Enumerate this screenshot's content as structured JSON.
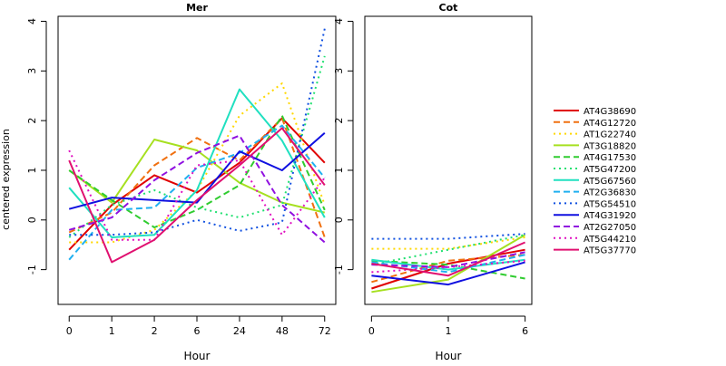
{
  "chart_data": {
    "type": "line",
    "ylabel": "centered expression",
    "xlabel": "Hour",
    "y_ticks": [
      -1,
      0,
      1,
      2,
      3,
      4
    ],
    "ylim": [
      -1.7,
      4.1
    ],
    "legend_position": "right",
    "series_styles": [
      {
        "name": "AT4G38690",
        "color": "#e00000",
        "dash": "solid"
      },
      {
        "name": "AT4G12720",
        "color": "#f07010",
        "dash": "dashed"
      },
      {
        "name": "AT1G22740",
        "color": "#ffd700",
        "dash": "dotted"
      },
      {
        "name": "AT3G18820",
        "color": "#a6e020",
        "dash": "solid"
      },
      {
        "name": "AT4G17530",
        "color": "#30cc30",
        "dash": "dashed"
      },
      {
        "name": "AT5G47200",
        "color": "#20e070",
        "dash": "dotted"
      },
      {
        "name": "AT5G67560",
        "color": "#20e0c0",
        "dash": "solid"
      },
      {
        "name": "AT2G36830",
        "color": "#20b0f0",
        "dash": "dashed"
      },
      {
        "name": "AT5G54510",
        "color": "#1050e0",
        "dash": "dotted"
      },
      {
        "name": "AT4G31920",
        "color": "#1010e0",
        "dash": "solid"
      },
      {
        "name": "AT2G27050",
        "color": "#9010e0",
        "dash": "dashed"
      },
      {
        "name": "AT5G44210",
        "color": "#e010c0",
        "dash": "dotted"
      },
      {
        "name": "AT5G37770",
        "color": "#e01070",
        "dash": "solid"
      }
    ],
    "panels": [
      {
        "title": "Mer",
        "categories": [
          "0",
          "1",
          "2",
          "6",
          "24",
          "48",
          "72"
        ],
        "series": [
          {
            "name": "AT4G38690",
            "values": [
              -0.6,
              0.3,
              0.9,
              0.55,
              1.15,
              2.05,
              1.15
            ]
          },
          {
            "name": "AT4G12720",
            "values": [
              -0.25,
              0.15,
              1.1,
              1.65,
              1.2,
              2.05,
              -0.35
            ]
          },
          {
            "name": "AT1G22740",
            "values": [
              -0.45,
              -0.45,
              -0.2,
              0.6,
              2.1,
              2.75,
              0.3
            ]
          },
          {
            "name": "AT3G18820",
            "values": [
              1.0,
              0.35,
              1.62,
              1.4,
              0.75,
              0.35,
              0.15
            ]
          },
          {
            "name": "AT4G17530",
            "values": [
              1.0,
              0.4,
              -0.15,
              0.2,
              0.7,
              2.1,
              0.2
            ]
          },
          {
            "name": "AT5G47200",
            "values": [
              -0.35,
              0.3,
              0.6,
              0.25,
              0.05,
              0.3,
              3.3
            ]
          },
          {
            "name": "AT5G67560",
            "values": [
              0.65,
              -0.35,
              -0.3,
              0.6,
              2.63,
              1.6,
              0.05
            ]
          },
          {
            "name": "AT2G36830",
            "values": [
              -0.8,
              0.2,
              0.25,
              1.05,
              1.35,
              1.9,
              0.85
            ]
          },
          {
            "name": "AT5G54510",
            "values": [
              -0.3,
              -0.3,
              -0.25,
              0.0,
              -0.22,
              -0.05,
              3.85
            ]
          },
          {
            "name": "AT4G31920",
            "values": [
              0.22,
              0.45,
              0.4,
              0.35,
              1.38,
              1.0,
              1.75
            ]
          },
          {
            "name": "AT2G27050",
            "values": [
              -0.2,
              0.05,
              0.8,
              1.35,
              1.7,
              0.3,
              -0.45
            ]
          },
          {
            "name": "AT5G44210",
            "values": [
              1.4,
              -0.4,
              -0.4,
              1.1,
              1.2,
              -0.3,
              0.85
            ]
          },
          {
            "name": "AT5G37770",
            "values": [
              1.2,
              -0.85,
              -0.4,
              0.4,
              1.1,
              1.85,
              0.7
            ]
          }
        ]
      },
      {
        "title": "Cot",
        "categories": [
          "0",
          "1",
          "6"
        ],
        "series": [
          {
            "name": "AT4G38690",
            "values": [
              -1.38,
              -0.88,
              -0.6
            ]
          },
          {
            "name": "AT4G12720",
            "values": [
              -1.25,
              -0.82,
              -0.7
            ]
          },
          {
            "name": "AT1G22740",
            "values": [
              -0.58,
              -0.58,
              -0.35
            ]
          },
          {
            "name": "AT3G18820",
            "values": [
              -1.45,
              -1.2,
              -0.3
            ]
          },
          {
            "name": "AT4G17530",
            "values": [
              -0.82,
              -0.9,
              -1.18
            ]
          },
          {
            "name": "AT5G47200",
            "values": [
              -0.9,
              -0.6,
              -0.3
            ]
          },
          {
            "name": "AT5G67560",
            "values": [
              -0.8,
              -1.0,
              -0.8
            ]
          },
          {
            "name": "AT2G36830",
            "values": [
              -0.85,
              -1.05,
              -0.7
            ]
          },
          {
            "name": "AT5G54510",
            "values": [
              -0.38,
              -0.38,
              -0.28
            ]
          },
          {
            "name": "AT4G31920",
            "values": [
              -1.12,
              -1.3,
              -0.85
            ]
          },
          {
            "name": "AT2G27050",
            "values": [
              -0.9,
              -0.95,
              -0.65
            ]
          },
          {
            "name": "AT5G44210",
            "values": [
              -1.05,
              -0.95,
              -0.82
            ]
          },
          {
            "name": "AT5G37770",
            "values": [
              -0.88,
              -1.12,
              -0.45
            ]
          }
        ]
      }
    ]
  }
}
